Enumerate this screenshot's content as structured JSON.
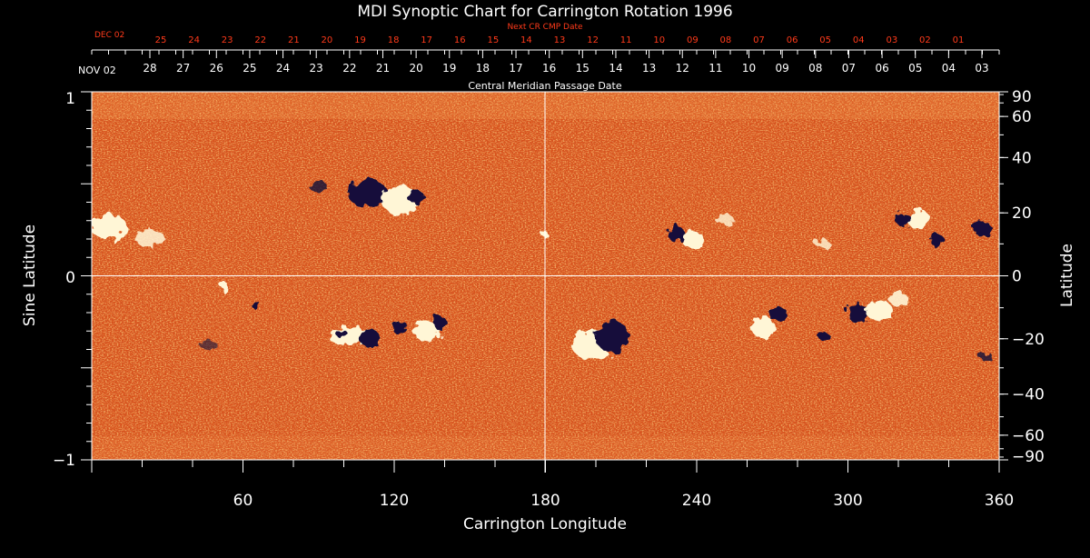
{
  "title": "MDI Synoptic Chart for Carrington Rotation 1996",
  "next_cr": {
    "label": "Next CR CMP Date",
    "start_label": "DEC 02",
    "ticks": [
      "25",
      "24",
      "23",
      "22",
      "21",
      "20",
      "19",
      "18",
      "17",
      "16",
      "15",
      "14",
      "13",
      "12",
      "11",
      "10",
      "09",
      "08",
      "07",
      "06",
      "05",
      "04",
      "03",
      "02",
      "01"
    ]
  },
  "cmp": {
    "label": "Central Meridian Passage Date",
    "start_label": "NOV 02",
    "ticks": [
      "28",
      "27",
      "26",
      "25",
      "24",
      "23",
      "22",
      "21",
      "20",
      "19",
      "18",
      "17",
      "16",
      "15",
      "14",
      "13",
      "12",
      "11",
      "10",
      "09",
      "08",
      "07",
      "06",
      "05",
      "04",
      "03"
    ]
  },
  "x_axis": {
    "label": "Carrington Longitude",
    "range": [
      0,
      360
    ],
    "ticks": [
      "60",
      "120",
      "180",
      "240",
      "300",
      "360"
    ]
  },
  "y_axis_left": {
    "label": "Sine Latitude",
    "ticks": [
      "1",
      "0",
      "−1"
    ]
  },
  "y_axis_right": {
    "label": "Latitude",
    "ticks": [
      "90",
      "60",
      "40",
      "20",
      "0",
      "−20",
      "−40",
      "−60",
      "−90"
    ]
  },
  "colors": {
    "background": "#000000",
    "field_base": "#d8501a",
    "positive_polarity": "#fff6d6",
    "negative_polarity": "#14103a",
    "next_cr_text": "#ff3a1a",
    "axes": "#ffffff"
  }
}
